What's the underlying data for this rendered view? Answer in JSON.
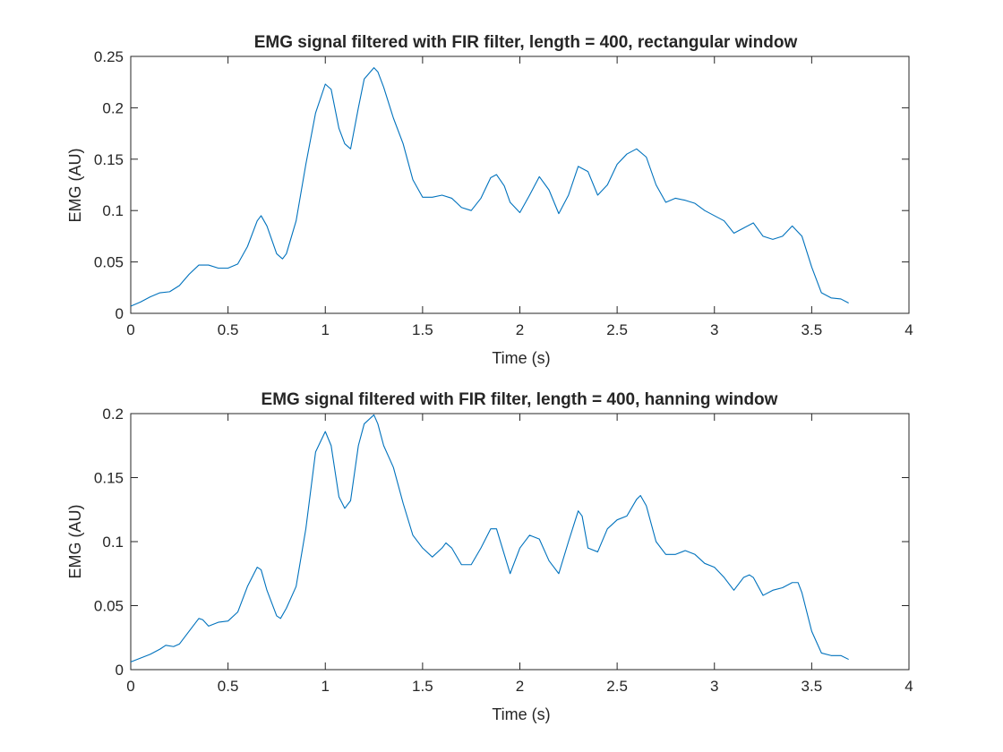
{
  "figure": {
    "line_color": "#0072BD",
    "axis_color": "#262626",
    "background": "#ffffff"
  },
  "chart_data": [
    {
      "type": "line",
      "title": "EMG signal filtered with FIR filter, length = 400, rectangular window",
      "xlabel": "Time (s)",
      "ylabel": "EMG (AU)",
      "xlim": [
        0,
        4
      ],
      "ylim": [
        0,
        0.25
      ],
      "xticks": [
        0,
        0.5,
        1,
        1.5,
        2,
        2.5,
        3,
        3.5,
        4
      ],
      "xtick_labels": [
        "0",
        "0.5",
        "1",
        "1.5",
        "2",
        "2.5",
        "3",
        "3.5",
        "4"
      ],
      "yticks": [
        0,
        0.05,
        0.1,
        0.15,
        0.2,
        0.25
      ],
      "ytick_labels": [
        "0",
        "0.05",
        "0.1",
        "0.15",
        "0.2",
        "0.25"
      ],
      "grid": false,
      "series": [
        {
          "color": "#0072BD",
          "x": [
            0,
            0.05,
            0.1,
            0.15,
            0.2,
            0.25,
            0.3,
            0.35,
            0.4,
            0.45,
            0.5,
            0.55,
            0.6,
            0.65,
            0.67,
            0.7,
            0.75,
            0.78,
            0.8,
            0.85,
            0.9,
            0.95,
            1.0,
            1.03,
            1.07,
            1.1,
            1.13,
            1.17,
            1.2,
            1.25,
            1.27,
            1.3,
            1.35,
            1.4,
            1.45,
            1.5,
            1.55,
            1.6,
            1.65,
            1.7,
            1.75,
            1.8,
            1.85,
            1.88,
            1.92,
            1.95,
            2.0,
            2.05,
            2.1,
            2.15,
            2.2,
            2.25,
            2.3,
            2.35,
            2.4,
            2.45,
            2.5,
            2.55,
            2.6,
            2.65,
            2.7,
            2.75,
            2.8,
            2.85,
            2.9,
            2.95,
            3.0,
            3.05,
            3.1,
            3.15,
            3.2,
            3.25,
            3.3,
            3.35,
            3.4,
            3.45,
            3.5,
            3.55,
            3.6,
            3.65,
            3.69
          ],
          "y": [
            0.007,
            0.011,
            0.016,
            0.02,
            0.021,
            0.027,
            0.038,
            0.047,
            0.047,
            0.044,
            0.044,
            0.048,
            0.065,
            0.09,
            0.095,
            0.085,
            0.058,
            0.053,
            0.058,
            0.09,
            0.145,
            0.195,
            0.223,
            0.218,
            0.18,
            0.165,
            0.16,
            0.2,
            0.228,
            0.239,
            0.235,
            0.22,
            0.19,
            0.165,
            0.13,
            0.113,
            0.113,
            0.115,
            0.112,
            0.103,
            0.1,
            0.112,
            0.132,
            0.135,
            0.124,
            0.108,
            0.098,
            0.115,
            0.133,
            0.12,
            0.097,
            0.115,
            0.143,
            0.138,
            0.115,
            0.125,
            0.145,
            0.155,
            0.16,
            0.152,
            0.125,
            0.108,
            0.112,
            0.11,
            0.107,
            0.1,
            0.095,
            0.09,
            0.078,
            0.083,
            0.088,
            0.075,
            0.072,
            0.075,
            0.085,
            0.075,
            0.045,
            0.02,
            0.015,
            0.014,
            0.01
          ]
        }
      ]
    },
    {
      "type": "line",
      "title": "EMG signal filtered with FIR filter, length = 400, hanning window",
      "xlabel": "Time (s)",
      "ylabel": "EMG (AU)",
      "xlim": [
        0,
        4
      ],
      "ylim": [
        0,
        0.2
      ],
      "xticks": [
        0,
        0.5,
        1,
        1.5,
        2,
        2.5,
        3,
        3.5,
        4
      ],
      "xtick_labels": [
        "0",
        "0.5",
        "1",
        "1.5",
        "2",
        "2.5",
        "3",
        "3.5",
        "4"
      ],
      "yticks": [
        0,
        0.05,
        0.1,
        0.15,
        0.2
      ],
      "ytick_labels": [
        "0",
        "0.05",
        "0.1",
        "0.15",
        "0.2"
      ],
      "grid": false,
      "series": [
        {
          "color": "#0072BD",
          "x": [
            0,
            0.05,
            0.1,
            0.15,
            0.18,
            0.22,
            0.25,
            0.3,
            0.35,
            0.37,
            0.4,
            0.45,
            0.5,
            0.55,
            0.6,
            0.65,
            0.67,
            0.7,
            0.75,
            0.77,
            0.8,
            0.85,
            0.9,
            0.95,
            1.0,
            1.03,
            1.07,
            1.1,
            1.13,
            1.17,
            1.2,
            1.25,
            1.27,
            1.3,
            1.35,
            1.4,
            1.45,
            1.5,
            1.55,
            1.6,
            1.62,
            1.65,
            1.7,
            1.75,
            1.8,
            1.85,
            1.88,
            1.92,
            1.95,
            2.0,
            2.05,
            2.1,
            2.15,
            2.2,
            2.25,
            2.3,
            2.32,
            2.35,
            2.4,
            2.45,
            2.5,
            2.55,
            2.6,
            2.62,
            2.65,
            2.7,
            2.75,
            2.8,
            2.85,
            2.9,
            2.95,
            3.0,
            3.05,
            3.1,
            3.15,
            3.18,
            3.2,
            3.25,
            3.3,
            3.35,
            3.4,
            3.43,
            3.45,
            3.5,
            3.55,
            3.6,
            3.65,
            3.69
          ],
          "y": [
            0.006,
            0.009,
            0.012,
            0.016,
            0.019,
            0.018,
            0.02,
            0.03,
            0.04,
            0.039,
            0.034,
            0.037,
            0.038,
            0.045,
            0.065,
            0.08,
            0.078,
            0.062,
            0.042,
            0.04,
            0.048,
            0.065,
            0.11,
            0.17,
            0.186,
            0.175,
            0.135,
            0.126,
            0.132,
            0.175,
            0.192,
            0.199,
            0.192,
            0.175,
            0.158,
            0.13,
            0.105,
            0.095,
            0.088,
            0.095,
            0.099,
            0.095,
            0.082,
            0.082,
            0.095,
            0.11,
            0.11,
            0.09,
            0.075,
            0.095,
            0.105,
            0.102,
            0.085,
            0.075,
            0.1,
            0.124,
            0.12,
            0.095,
            0.092,
            0.11,
            0.117,
            0.12,
            0.133,
            0.136,
            0.128,
            0.1,
            0.09,
            0.09,
            0.093,
            0.09,
            0.083,
            0.08,
            0.072,
            0.062,
            0.072,
            0.074,
            0.072,
            0.058,
            0.062,
            0.064,
            0.068,
            0.068,
            0.06,
            0.03,
            0.013,
            0.011,
            0.011,
            0.008
          ]
        }
      ]
    }
  ]
}
